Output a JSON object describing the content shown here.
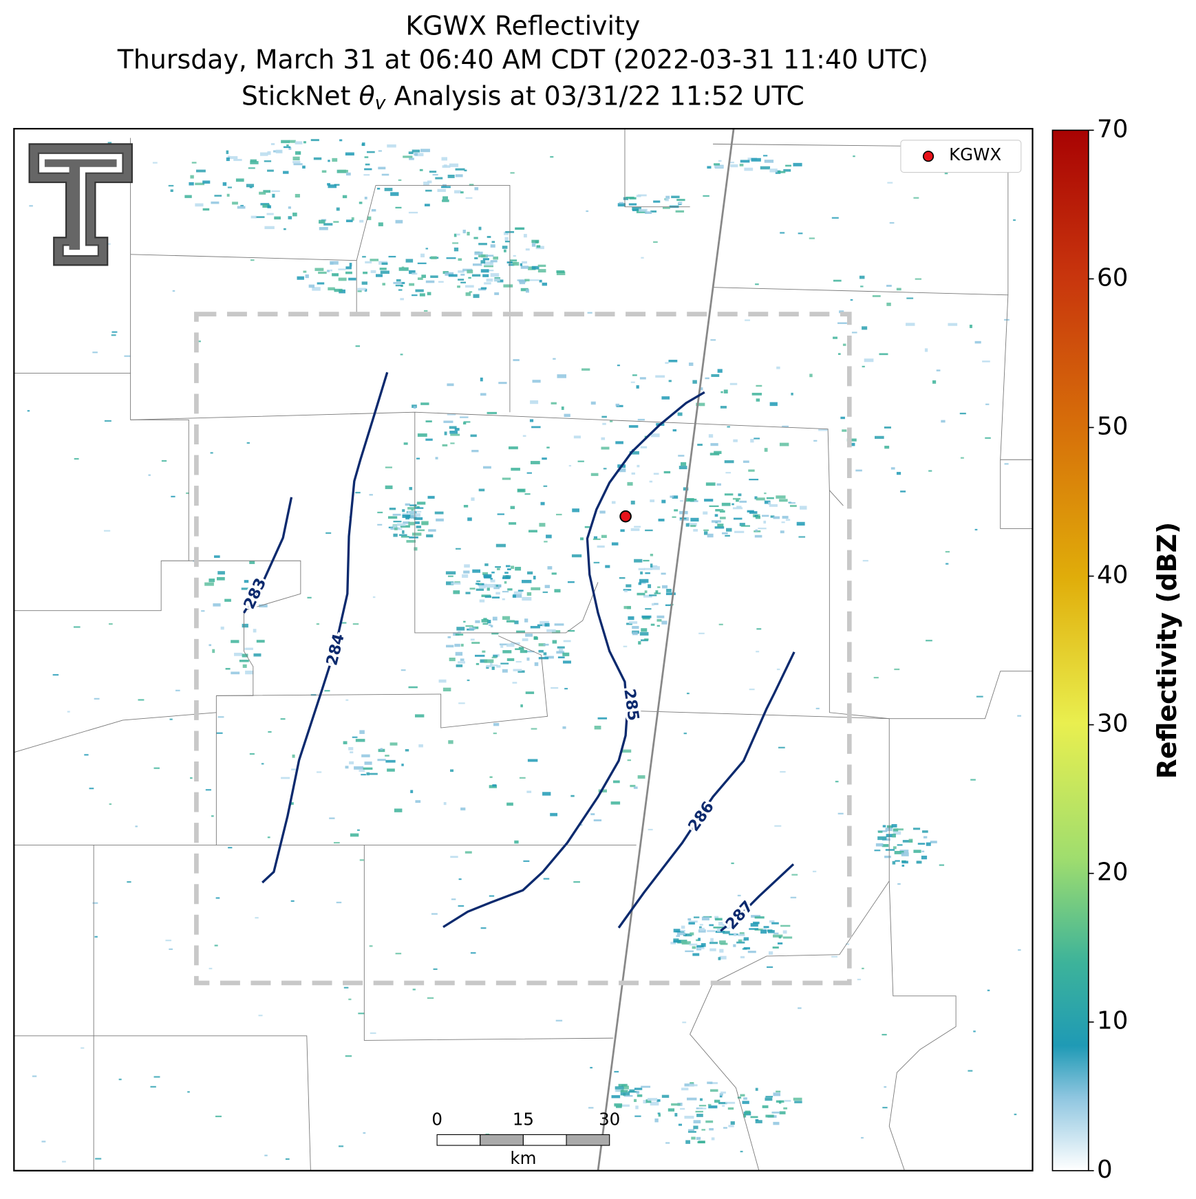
{
  "title_lines": [
    "KGWX Reflectivity",
    "Thursday, March 31 at 06:40 AM CDT (2022-03-31 11:40 UTC)"
  ],
  "subtitle": {
    "prefix": "StickNet",
    "symbol": "θ",
    "subscript": "v",
    "suffix": "Analysis at 03/31/22 11:52 UTC"
  },
  "legend": {
    "label": "KGWX"
  },
  "contour_labels": [
    283,
    284,
    285,
    286,
    287
  ],
  "colorbar": {
    "label": "Reflectivity (dBZ)",
    "lim": [
      0,
      70
    ],
    "ticks": [
      0,
      10,
      20,
      30,
      40,
      50,
      60,
      70
    ]
  },
  "scale_bar": {
    "ticks": [
      0,
      15,
      30
    ],
    "unit": "km"
  }
}
